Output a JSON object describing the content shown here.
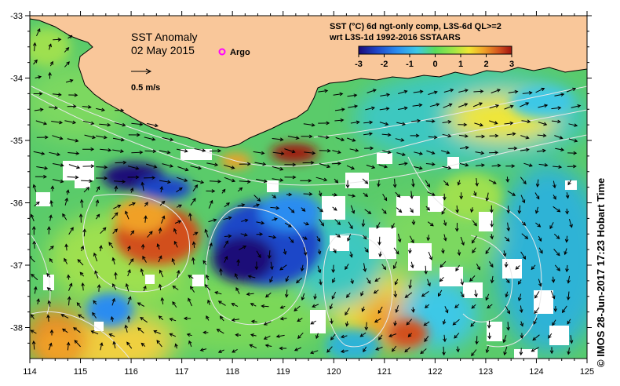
{
  "title": "SST Anomaly",
  "date": "02 May 2015",
  "legend": {
    "argo_label": "Argo",
    "argo_color": "#ff00ff",
    "scale_arrow_label": "0.5 m/s"
  },
  "colorbar": {
    "title_line1": "SST (°C) 6d ngt-only comp, L3S-6d QL>=2",
    "title_line2": "wrt L3S-1d 1992-2016 SSTAARS",
    "ticks": [
      "-3",
      "-2",
      "-1",
      "0",
      "1",
      "2",
      "3"
    ],
    "colors": [
      "#1a0a78",
      "#1e46c8",
      "#2a8cf0",
      "#3cc8e6",
      "#5adc5a",
      "#a0e646",
      "#f0e632",
      "#f0a028",
      "#d2501e",
      "#a0140f"
    ]
  },
  "credit": "©  IMOS 28-Jun-2017 17:23 Hobart Time",
  "land_color": "#f9c79a",
  "axes": {
    "x_ticks": [
      "114",
      "115",
      "116",
      "117",
      "118",
      "119",
      "120",
      "121",
      "122",
      "123",
      "124",
      "125"
    ],
    "y_ticks": [
      "-33",
      "-34",
      "-35",
      "-36",
      "-37",
      "-38"
    ]
  }
}
